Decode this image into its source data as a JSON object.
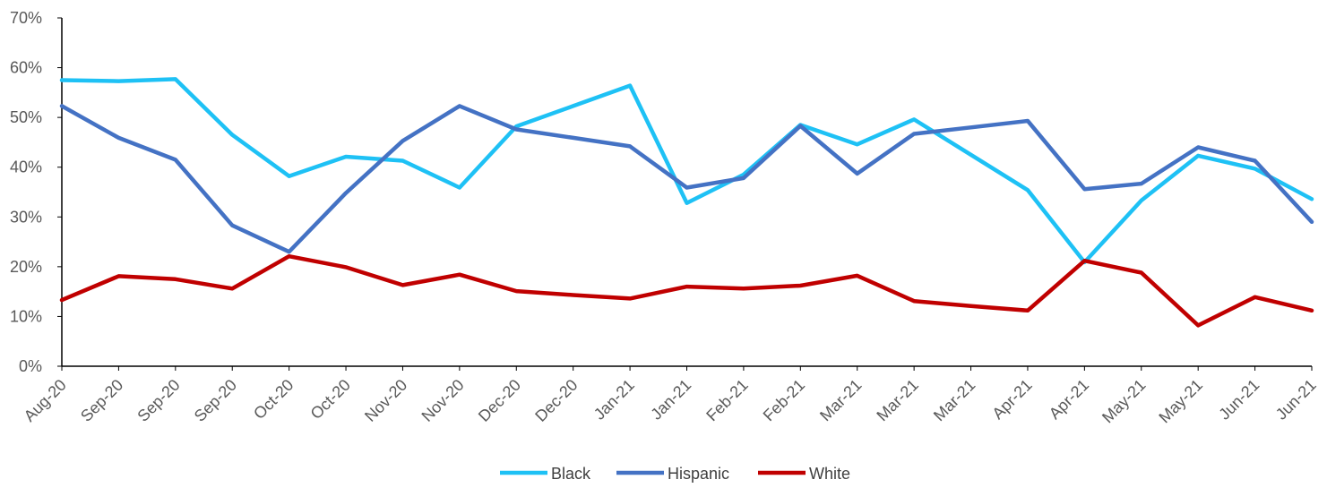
{
  "chart_data": {
    "type": "line",
    "title": "",
    "xlabel": "",
    "ylabel": "",
    "ylim": [
      0,
      70
    ],
    "y_ticks": [
      "0%",
      "10%",
      "20%",
      "30%",
      "40%",
      "50%",
      "60%",
      "70%"
    ],
    "y_tick_values": [
      0,
      10,
      20,
      30,
      40,
      50,
      60,
      70
    ],
    "grid": false,
    "legend_position": "bottom",
    "categories": [
      "Aug-20",
      "Sep-20",
      "Sep-20",
      "Sep-20",
      "Oct-20",
      "Oct-20",
      "Nov-20",
      "Nov-20",
      "Dec-20",
      "Dec-20",
      "Jan-21",
      "Jan-21",
      "Feb-21",
      "Feb-21",
      "Mar-21",
      "Mar-21",
      "Mar-21",
      "Apr-21",
      "Apr-21",
      "May-21",
      "May-21",
      "Jun-21",
      "Jun-21"
    ],
    "series": [
      {
        "name": "Black",
        "color": "#1EC1F5",
        "values": [
          57.5,
          57.3,
          57.7,
          46.5,
          38.2,
          42.1,
          41.3,
          35.9,
          48.2,
          52.3,
          56.4,
          32.8,
          38.5,
          48.5,
          44.6,
          49.6,
          42.5,
          35.4,
          20.9,
          33.3,
          42.3,
          39.7,
          33.6
        ]
      },
      {
        "name": "Hispanic",
        "color": "#4472C4",
        "values": [
          52.3,
          45.9,
          41.5,
          28.3,
          23.0,
          34.8,
          45.3,
          52.3,
          47.6,
          45.9,
          44.2,
          35.9,
          37.8,
          48.3,
          38.7,
          46.7,
          48.0,
          49.3,
          35.6,
          36.7,
          44.0,
          41.3,
          29.0
        ]
      },
      {
        "name": "White",
        "color": "#C00000",
        "values": [
          13.3,
          18.1,
          17.5,
          15.6,
          22.1,
          19.9,
          16.3,
          18.4,
          15.1,
          14.3,
          13.6,
          16.0,
          15.6,
          16.2,
          18.2,
          13.1,
          12.1,
          11.2,
          21.2,
          18.8,
          8.2,
          13.9,
          11.2
        ]
      }
    ]
  }
}
